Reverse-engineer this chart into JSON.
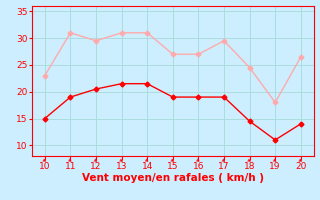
{
  "x": [
    10,
    11,
    12,
    13,
    14,
    15,
    16,
    17,
    18,
    19,
    20
  ],
  "wind_avg": [
    15,
    19,
    20.5,
    21.5,
    21.5,
    19,
    19,
    19,
    14.5,
    11,
    14
  ],
  "wind_gust": [
    23,
    31,
    29.5,
    31,
    31,
    27,
    27,
    29.5,
    24.5,
    18,
    26.5
  ],
  "avg_color": "#ff0000",
  "gust_color": "#ffaaaa",
  "bg_color": "#cceeff",
  "grid_color": "#aadddd",
  "xlabel": "Vent moyen/en rafales ( km/h )",
  "xlabel_color": "#ff0000",
  "tick_color": "#ff0000",
  "spine_color": "#ff0000",
  "xlim": [
    9.5,
    20.5
  ],
  "ylim": [
    8,
    36
  ],
  "yticks": [
    10,
    15,
    20,
    25,
    30,
    35
  ],
  "xticks": [
    10,
    11,
    12,
    13,
    14,
    15,
    16,
    17,
    18,
    19,
    20
  ],
  "marker": "D",
  "markersize": 2.5,
  "linewidth": 1.0,
  "tick_labelsize": 6.5,
  "xlabel_fontsize": 7.5
}
